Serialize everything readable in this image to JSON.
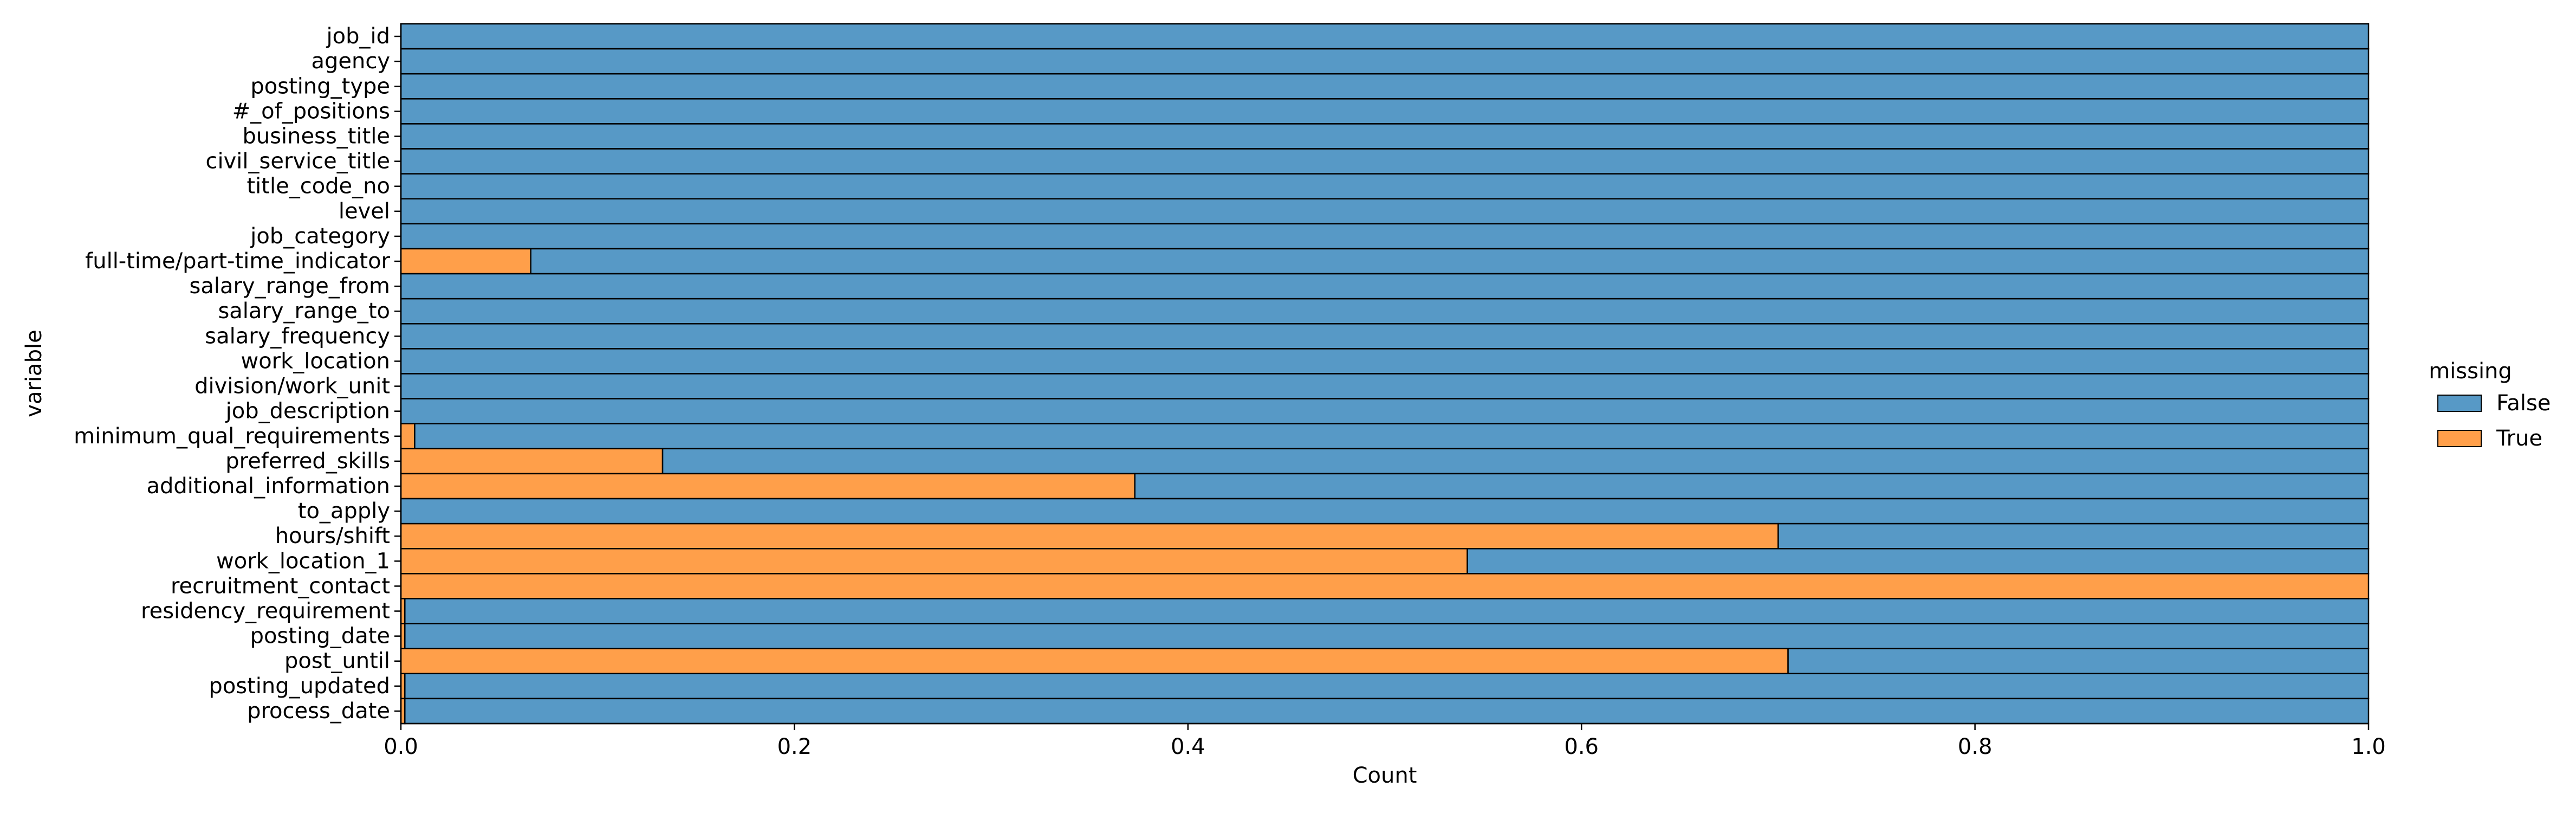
{
  "chart_data": {
    "type": "bar",
    "orientation": "horizontal",
    "stacked": true,
    "xlabel": "Count",
    "ylabel": "variable",
    "xlim": [
      0.0,
      1.0
    ],
    "x_ticks": [
      "0.0",
      "0.2",
      "0.4",
      "0.6",
      "0.8",
      "1.0"
    ],
    "x_tick_values": [
      0.0,
      0.2,
      0.4,
      0.6,
      0.8,
      1.0
    ],
    "grid": false,
    "legend": {
      "title": "missing",
      "placement": "right",
      "entries": [
        "False",
        "True"
      ]
    },
    "colors": {
      "False": "#5799c6",
      "True": "#ff9f4a",
      "edge": "#000000"
    },
    "categories": [
      "job_id",
      "agency",
      "posting_type",
      "#_of_positions",
      "business_title",
      "civil_service_title",
      "title_code_no",
      "level",
      "job_category",
      "full-time/part-time_indicator",
      "salary_range_from",
      "salary_range_to",
      "salary_frequency",
      "work_location",
      "division/work_unit",
      "job_description",
      "minimum_qual_requirements",
      "preferred_skills",
      "additional_information",
      "to_apply",
      "hours/shift",
      "work_location_1",
      "recruitment_contact",
      "residency_requirement",
      "posting_date",
      "post_until",
      "posting_updated",
      "process_date"
    ],
    "series": [
      {
        "name": "True",
        "values": [
          0.0,
          0.0,
          0.0,
          0.0,
          0.0,
          0.0,
          0.0,
          0.0,
          0.0,
          0.066,
          0.0,
          0.0,
          0.0,
          0.0,
          0.0,
          0.0,
          0.007,
          0.133,
          0.373,
          0.0,
          0.7,
          0.542,
          1.0,
          0.002,
          0.002,
          0.705,
          0.002,
          0.002
        ]
      },
      {
        "name": "False",
        "values": [
          1.0,
          1.0,
          1.0,
          1.0,
          1.0,
          1.0,
          1.0,
          1.0,
          1.0,
          0.934,
          1.0,
          1.0,
          1.0,
          1.0,
          1.0,
          1.0,
          0.993,
          0.867,
          0.627,
          1.0,
          0.3,
          0.458,
          0.0,
          0.998,
          0.998,
          0.295,
          0.998,
          0.998
        ]
      }
    ]
  }
}
